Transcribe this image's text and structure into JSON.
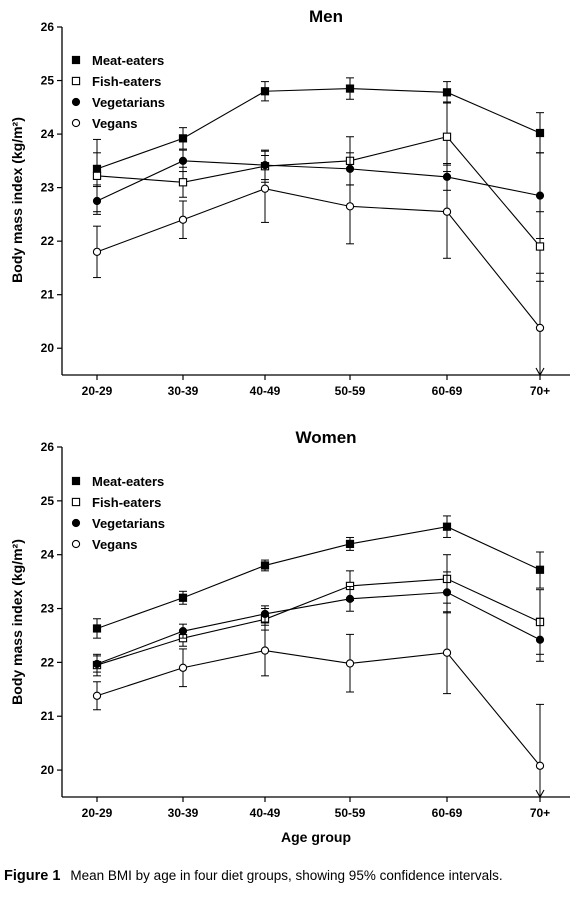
{
  "chart_data": [
    {
      "type": "line",
      "title": "Men",
      "xlabel": "",
      "ylabel": "Body mass index (kg/m²)",
      "categories": [
        "20-29",
        "30-39",
        "40-49",
        "50-59",
        "60-69",
        "70+"
      ],
      "ylim": [
        19.5,
        26
      ],
      "yticks": [
        20,
        21,
        22,
        23,
        24,
        25,
        26
      ],
      "legend_position": "top-left",
      "series": [
        {
          "name": "Meat-eaters",
          "marker": "filled-square",
          "values": [
            23.35,
            23.92,
            24.8,
            24.85,
            24.78,
            24.02
          ],
          "ci_low": [
            23.05,
            23.72,
            24.62,
            24.65,
            24.58,
            23.65
          ],
          "ci_high": [
            23.65,
            24.12,
            24.98,
            25.05,
            24.98,
            24.4
          ]
        },
        {
          "name": "Fish-eaters",
          "marker": "open-square",
          "values": [
            23.22,
            23.1,
            23.4,
            23.5,
            23.95,
            21.9
          ],
          "ci_low": [
            22.55,
            22.82,
            23.1,
            23.05,
            23.3,
            21.25
          ],
          "ci_high": [
            23.9,
            23.38,
            23.7,
            23.95,
            24.6,
            22.55
          ]
        },
        {
          "name": "Vegetarians",
          "marker": "filled-circle",
          "values": [
            22.75,
            23.5,
            23.42,
            23.35,
            23.2,
            22.85
          ],
          "ci_low": [
            22.5,
            23.3,
            23.15,
            23.05,
            22.95,
            22.05
          ],
          "ci_high": [
            23.02,
            23.7,
            23.68,
            23.65,
            23.45,
            23.65
          ]
        },
        {
          "name": "Vegans",
          "marker": "open-circle",
          "values": [
            21.8,
            22.4,
            22.98,
            22.65,
            22.55,
            20.38
          ],
          "ci_low": [
            21.32,
            22.05,
            22.35,
            21.95,
            21.68,
            19.5
          ],
          "ci_high": [
            22.28,
            22.75,
            23.6,
            23.35,
            23.42,
            21.4
          ],
          "ci_low_arrow": [
            false,
            false,
            false,
            false,
            false,
            true
          ]
        }
      ]
    },
    {
      "type": "line",
      "title": "Women",
      "xlabel": "Age group",
      "ylabel": "Body mass index (kg/m²)",
      "categories": [
        "20-29",
        "30-39",
        "40-49",
        "50-59",
        "60-69",
        "70+"
      ],
      "ylim": [
        19.5,
        26
      ],
      "yticks": [
        20,
        21,
        22,
        23,
        24,
        25,
        26
      ],
      "legend_position": "top-left",
      "series": [
        {
          "name": "Meat-eaters",
          "marker": "filled-square",
          "values": [
            22.63,
            23.2,
            23.8,
            24.2,
            24.52,
            23.72
          ],
          "ci_low": [
            22.45,
            23.08,
            23.7,
            24.08,
            24.32,
            23.38
          ],
          "ci_high": [
            22.81,
            23.32,
            23.9,
            24.32,
            24.72,
            24.05
          ]
        },
        {
          "name": "Fish-eaters",
          "marker": "open-square",
          "values": [
            21.95,
            22.45,
            22.8,
            23.42,
            23.55,
            22.75
          ],
          "ci_low": [
            21.75,
            22.3,
            22.6,
            23.15,
            23.1,
            22.15
          ],
          "ci_high": [
            22.15,
            22.6,
            23.0,
            23.7,
            24.0,
            23.35
          ]
        },
        {
          "name": "Vegetarians",
          "marker": "filled-circle",
          "values": [
            21.97,
            22.58,
            22.9,
            23.18,
            23.3,
            22.42
          ],
          "ci_low": [
            21.82,
            22.45,
            22.75,
            22.95,
            22.92,
            22.02
          ],
          "ci_high": [
            22.12,
            22.71,
            23.05,
            23.41,
            23.68,
            22.82
          ]
        },
        {
          "name": "Vegans",
          "marker": "open-circle",
          "values": [
            21.38,
            21.9,
            22.22,
            21.98,
            22.18,
            20.08
          ],
          "ci_low": [
            21.12,
            21.55,
            21.75,
            21.45,
            21.42,
            19.5
          ],
          "ci_high": [
            21.64,
            22.25,
            22.69,
            22.52,
            22.94,
            21.22
          ],
          "ci_low_arrow": [
            false,
            false,
            false,
            false,
            false,
            true
          ]
        }
      ]
    }
  ],
  "caption": {
    "label": "Figure 1",
    "text": "Mean BMI by age in four diet groups, showing 95% confidence intervals."
  }
}
